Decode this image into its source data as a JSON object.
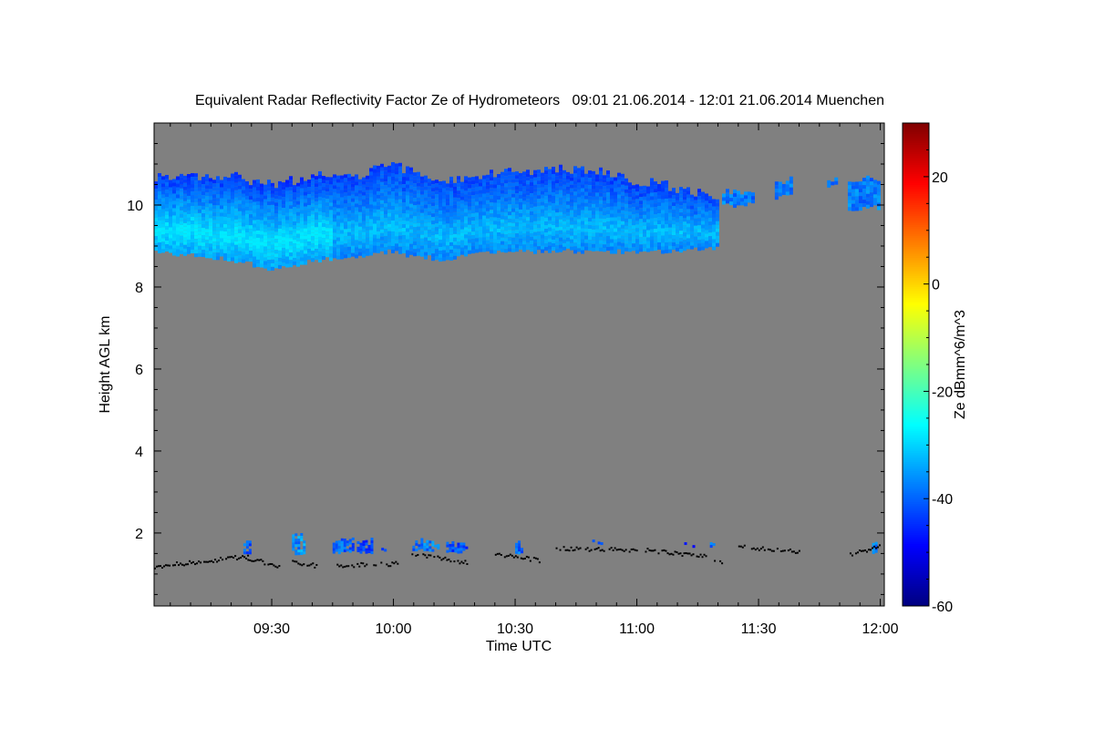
{
  "chart_data": {
    "type": "heatmap",
    "title": "Equivalent Radar Reflectivity Factor Ze of Hydrometeors   09:01 21.06.2014 - 12:01 21.06.2014 Muenchen",
    "xlabel": "Time UTC",
    "ylabel": "Height AGL km",
    "colorbar_label": "Ze dBmm^6/m^3",
    "x_unit": "minutes after 09:00 UTC",
    "xlim": [
      1,
      181
    ],
    "ylim": [
      0.22,
      12
    ],
    "clim": [
      -60,
      30
    ],
    "x_ticks": [
      {
        "value": 30,
        "label": "09:30"
      },
      {
        "value": 60,
        "label": "10:00"
      },
      {
        "value": 90,
        "label": "10:30"
      },
      {
        "value": 120,
        "label": "11:00"
      },
      {
        "value": 150,
        "label": "11:30"
      },
      {
        "value": 180,
        "label": "12:00"
      }
    ],
    "y_ticks": [
      {
        "value": 2,
        "label": "2"
      },
      {
        "value": 4,
        "label": "4"
      },
      {
        "value": 6,
        "label": "6"
      },
      {
        "value": 8,
        "label": "8"
      },
      {
        "value": 10,
        "label": "10"
      }
    ],
    "c_ticks": [
      {
        "value": 20,
        "label": "20"
      },
      {
        "value": 0,
        "label": "0"
      },
      {
        "value": -20,
        "label": "-20"
      },
      {
        "value": -40,
        "label": "-40"
      },
      {
        "value": -60,
        "label": "-60"
      }
    ],
    "background_color": "#808080",
    "cirrus_layer": {
      "ze_range": [
        -42,
        -28
      ],
      "profile_minute_top_bottom": [
        [
          1,
          10.7,
          8.9
        ],
        [
          10,
          10.7,
          8.8
        ],
        [
          20,
          10.75,
          8.7
        ],
        [
          25,
          10.55,
          8.6
        ],
        [
          30,
          10.5,
          8.5
        ],
        [
          35,
          10.6,
          8.55
        ],
        [
          40,
          10.7,
          8.7
        ],
        [
          50,
          10.7,
          8.75
        ],
        [
          58,
          11.0,
          8.9
        ],
        [
          65,
          10.8,
          8.8
        ],
        [
          72,
          10.6,
          8.7
        ],
        [
          80,
          10.7,
          8.9
        ],
        [
          90,
          10.8,
          8.9
        ],
        [
          100,
          10.9,
          8.9
        ],
        [
          110,
          10.85,
          8.9
        ],
        [
          118,
          10.6,
          8.9
        ],
        [
          126,
          10.5,
          8.9
        ],
        [
          134,
          10.3,
          8.95
        ],
        [
          140,
          10.2,
          9.0
        ]
      ],
      "fragments_minute_start_end_top_bottom": [
        [
          141,
          149,
          10.4,
          10.0
        ],
        [
          154,
          158,
          10.7,
          10.2
        ],
        [
          166,
          169,
          10.7,
          10.45
        ],
        [
          172,
          180,
          10.75,
          9.9
        ]
      ]
    },
    "low_cloud_patches_minute_start_end_bottom_top_ze": [
      [
        23,
        25,
        1.5,
        1.85,
        -40
      ],
      [
        35,
        38,
        1.5,
        2.05,
        -36
      ],
      [
        45,
        50,
        1.55,
        1.9,
        -40
      ],
      [
        51,
        55,
        1.55,
        1.9,
        -42
      ],
      [
        57,
        58,
        1.6,
        1.75,
        -40
      ],
      [
        64,
        71,
        1.6,
        1.9,
        -38
      ],
      [
        73,
        78,
        1.55,
        1.85,
        -42
      ],
      [
        90,
        92,
        1.5,
        1.85,
        -40
      ],
      [
        109,
        112,
        1.75,
        1.85,
        -44
      ],
      [
        131,
        134,
        1.7,
        1.8,
        -48
      ],
      [
        138,
        139,
        1.7,
        1.9,
        -38
      ],
      [
        178,
        179,
        1.55,
        1.9,
        -38
      ]
    ],
    "cloud_base_segments_minute_start_end_h0_h1": [
      [
        1,
        24,
        1.2,
        1.45
      ],
      [
        24,
        32,
        1.4,
        1.2
      ],
      [
        35,
        41,
        1.3,
        1.22
      ],
      [
        46,
        61,
        1.22,
        1.27
      ],
      [
        64,
        78,
        1.5,
        1.3
      ],
      [
        85,
        96,
        1.5,
        1.35
      ],
      [
        100,
        120,
        1.65,
        1.6
      ],
      [
        122,
        137,
        1.6,
        1.45
      ],
      [
        139,
        141,
        1.3,
        1.3
      ],
      [
        145,
        160,
        1.7,
        1.55
      ],
      [
        172,
        180,
        1.5,
        1.7
      ]
    ]
  }
}
